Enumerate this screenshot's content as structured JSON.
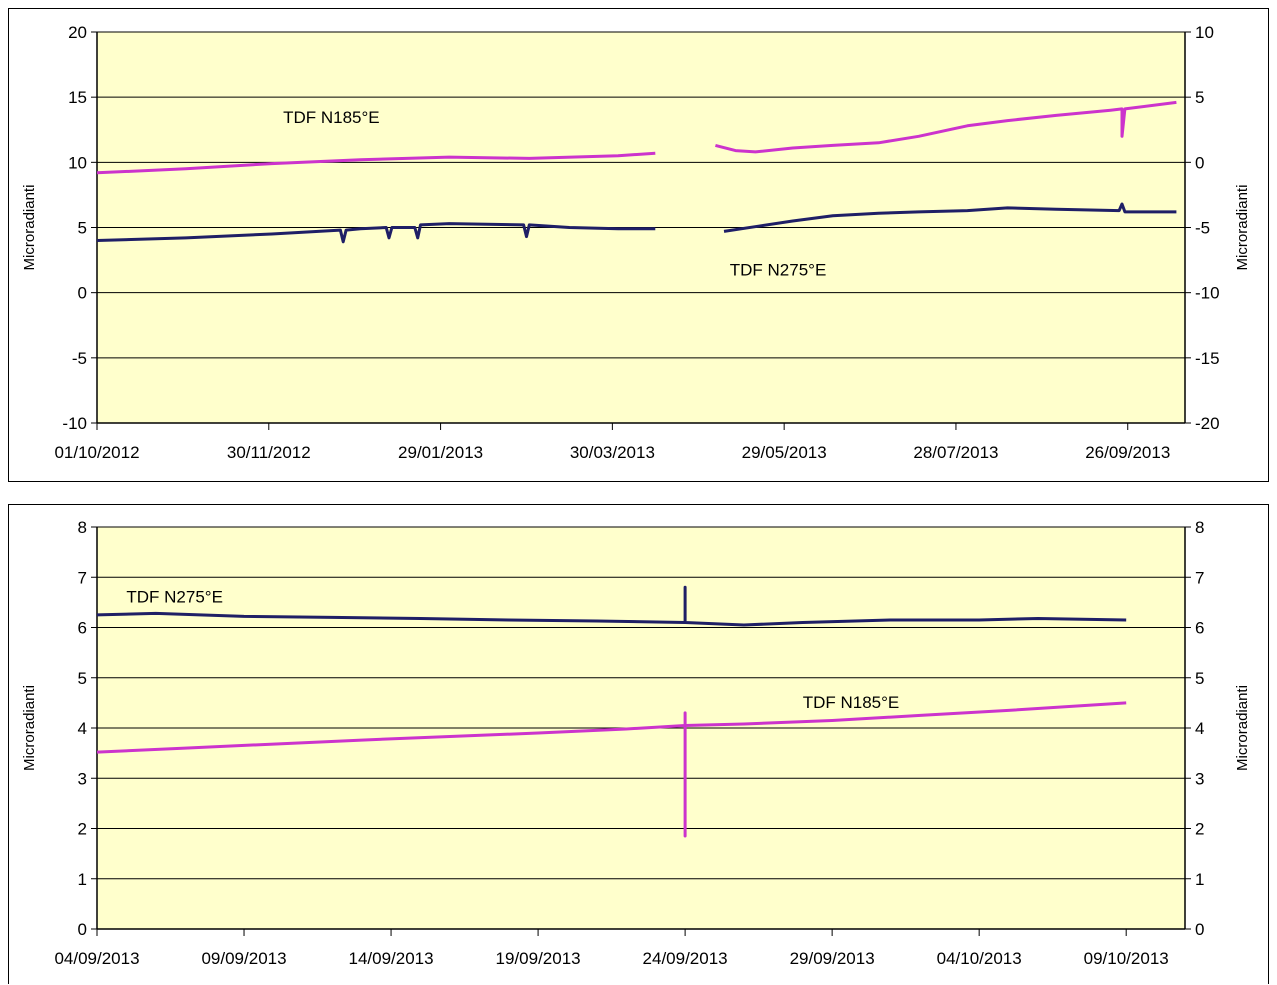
{
  "chart_data": [
    {
      "type": "line",
      "yticks_left": [
        "20",
        "15",
        "10",
        "5",
        "0",
        "-5",
        "-10"
      ],
      "yticks_right": [
        "10",
        "5",
        "0",
        "-5",
        "-10",
        "-15",
        "-20"
      ],
      "ylim_left": [
        -10,
        20
      ],
      "ylim_right": [
        -20,
        10
      ],
      "ylabel_left": "Microradianti",
      "ylabel_right": "Microradianti",
      "xlim": [
        "2012-10-01",
        "2013-10-16"
      ],
      "xticks": [
        "01/10/2012",
        "30/11/2012",
        "29/01/2013",
        "30/03/2013",
        "29/05/2013",
        "28/07/2013",
        "26/09/2013"
      ],
      "xtick_dates": [
        "2012-10-01",
        "2012-11-30",
        "2013-01-29",
        "2013-03-30",
        "2013-05-29",
        "2013-07-28",
        "2013-09-26"
      ],
      "grid": true,
      "plot_background": "#ffffcc",
      "annotations": [
        {
          "text": "TDF N185°E",
          "x": "2012-12-05",
          "y": 13
        },
        {
          "text": "TDF N275°E",
          "x": "2013-05-10",
          "y": 1.3
        }
      ],
      "series": [
        {
          "color": "#cc33cc",
          "axis": "left",
          "segments": [
            [
              [
                "2012-10-01",
                9.2
              ],
              [
                "2012-11-01",
                9.5
              ],
              [
                "2012-12-01",
                9.9
              ],
              [
                "2013-01-01",
                10.2
              ],
              [
                "2013-02-01",
                10.4
              ],
              [
                "2013-03-01",
                10.3
              ],
              [
                "2013-04-01",
                10.5
              ],
              [
                "2013-04-14",
                10.7
              ]
            ],
            [
              [
                "2013-05-05",
                11.3
              ],
              [
                "2013-05-12",
                10.9
              ],
              [
                "2013-05-19",
                10.8
              ],
              [
                "2013-06-01",
                11.1
              ],
              [
                "2013-06-15",
                11.3
              ],
              [
                "2013-07-01",
                11.5
              ],
              [
                "2013-07-15",
                12.0
              ],
              [
                "2013-08-01",
                12.8
              ],
              [
                "2013-08-15",
                13.2
              ],
              [
                "2013-09-01",
                13.6
              ],
              [
                "2013-09-20",
                14.0
              ],
              [
                "2013-09-24",
                14.1
              ],
              [
                "2013-09-24",
                12.0
              ],
              [
                "2013-09-25",
                14.1
              ],
              [
                "2013-10-13",
                14.6
              ]
            ]
          ]
        },
        {
          "color": "#1f1f66",
          "axis": "left",
          "segments": [
            [
              [
                "2012-10-01",
                4.0
              ],
              [
                "2012-11-01",
                4.2
              ],
              [
                "2012-12-01",
                4.5
              ],
              [
                "2012-12-25",
                4.8
              ],
              [
                "2012-12-26",
                3.9
              ],
              [
                "2012-12-27",
                4.8
              ],
              [
                "2013-01-01",
                4.9
              ],
              [
                "2013-01-10",
                5.0
              ],
              [
                "2013-01-11",
                4.2
              ],
              [
                "2013-01-12",
                5.0
              ],
              [
                "2013-01-20",
                5.0
              ],
              [
                "2013-01-21",
                4.2
              ],
              [
                "2013-01-22",
                5.2
              ],
              [
                "2013-02-01",
                5.3
              ],
              [
                "2013-02-27",
                5.2
              ],
              [
                "2013-02-28",
                4.3
              ],
              [
                "2013-03-01",
                5.2
              ],
              [
                "2013-03-15",
                5.0
              ],
              [
                "2013-04-01",
                4.9
              ],
              [
                "2013-04-14",
                4.9
              ]
            ],
            [
              [
                "2013-05-08",
                4.7
              ],
              [
                "2013-05-20",
                5.1
              ],
              [
                "2013-06-01",
                5.5
              ],
              [
                "2013-06-15",
                5.9
              ],
              [
                "2013-07-01",
                6.1
              ],
              [
                "2013-07-15",
                6.2
              ],
              [
                "2013-08-01",
                6.3
              ],
              [
                "2013-08-15",
                6.5
              ],
              [
                "2013-09-01",
                6.4
              ],
              [
                "2013-09-23",
                6.3
              ],
              [
                "2013-09-24",
                6.8
              ],
              [
                "2013-09-25",
                6.2
              ],
              [
                "2013-10-13",
                6.2
              ]
            ]
          ]
        }
      ]
    },
    {
      "type": "line",
      "yticks_left": [
        "8",
        "7",
        "6",
        "5",
        "4",
        "3",
        "2",
        "1",
        "0"
      ],
      "yticks_right": [
        "8",
        "7",
        "6",
        "5",
        "4",
        "3",
        "2",
        "1",
        "0"
      ],
      "ylim_left": [
        0,
        8
      ],
      "ylim_right": [
        0,
        8
      ],
      "ylabel_left": "Microradianti",
      "ylabel_right": "Microradianti",
      "xlim": [
        "2013-09-04",
        "2013-10-11"
      ],
      "xticks": [
        "04/09/2013",
        "09/09/2013",
        "14/09/2013",
        "19/09/2013",
        "24/09/2013",
        "29/09/2013",
        "04/10/2013",
        "09/10/2013"
      ],
      "xtick_dates": [
        "2013-09-04",
        "2013-09-09",
        "2013-09-14",
        "2013-09-19",
        "2013-09-24",
        "2013-09-29",
        "2013-10-04",
        "2013-10-09"
      ],
      "grid": true,
      "plot_background": "#ffffcc",
      "annotations": [
        {
          "text": "TDF N275°E",
          "x": "2013-09-05",
          "y": 6.5
        },
        {
          "text": "TDF N185°E",
          "x": "2013-09-28",
          "y": 4.4
        }
      ],
      "series": [
        {
          "color": "#1f1f66",
          "axis": "left",
          "segments": [
            [
              [
                "2013-09-04",
                6.25
              ],
              [
                "2013-09-06",
                6.28
              ],
              [
                "2013-09-09",
                6.22
              ],
              [
                "2013-09-12",
                6.2
              ],
              [
                "2013-09-15",
                6.18
              ],
              [
                "2013-09-18",
                6.15
              ],
              [
                "2013-09-21",
                6.13
              ],
              [
                "2013-09-24",
                6.1
              ],
              [
                "2013-09-24",
                6.8
              ],
              [
                "2013-09-24",
                6.1
              ],
              [
                "2013-09-26",
                6.05
              ],
              [
                "2013-09-28",
                6.1
              ],
              [
                "2013-10-01",
                6.15
              ],
              [
                "2013-10-04",
                6.15
              ],
              [
                "2013-10-06",
                6.18
              ],
              [
                "2013-10-09",
                6.15
              ]
            ]
          ]
        },
        {
          "color": "#cc33cc",
          "axis": "left",
          "segments": [
            [
              [
                "2013-09-04",
                3.52
              ],
              [
                "2013-09-07",
                3.6
              ],
              [
                "2013-09-10",
                3.68
              ],
              [
                "2013-09-13",
                3.76
              ],
              [
                "2013-09-16",
                3.83
              ],
              [
                "2013-09-19",
                3.9
              ],
              [
                "2013-09-22",
                3.98
              ],
              [
                "2013-09-24",
                4.05
              ],
              [
                "2013-09-24",
                4.3
              ],
              [
                "2013-09-24",
                1.85
              ],
              [
                "2013-09-24",
                4.05
              ],
              [
                "2013-09-26",
                4.08
              ],
              [
                "2013-09-29",
                4.15
              ],
              [
                "2013-10-02",
                4.25
              ],
              [
                "2013-10-05",
                4.35
              ],
              [
                "2013-10-09",
                4.5
              ]
            ]
          ]
        }
      ]
    }
  ]
}
